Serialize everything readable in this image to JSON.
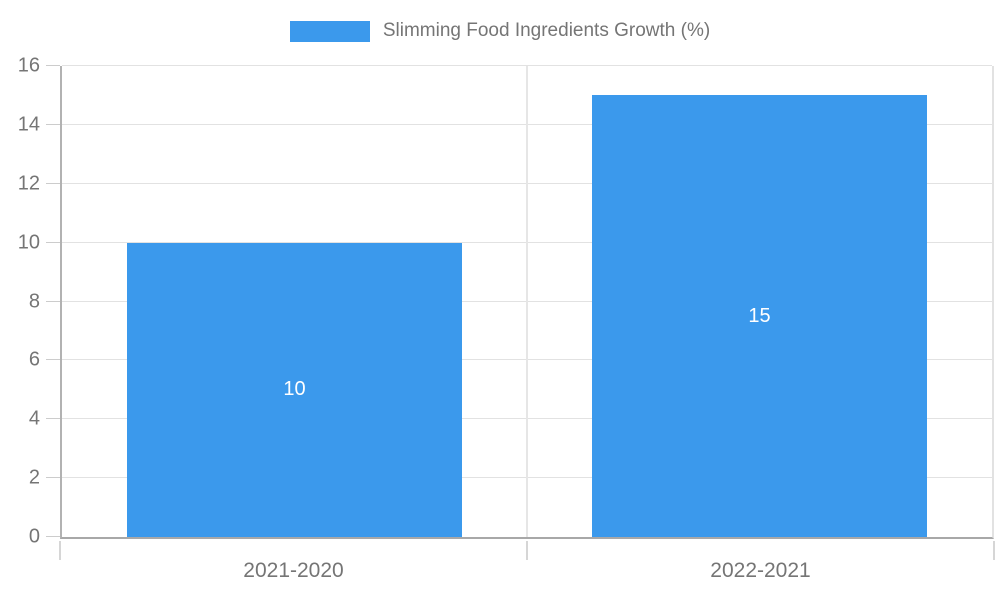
{
  "legend": {
    "label": "Slimming Food Ingredients Growth (%)"
  },
  "colors": {
    "bar": "#3b99ec",
    "axis_text": "#757575",
    "value_label_text": "#ffffff",
    "gridline": "#e2e2e2",
    "axis_line": "#a8a8a8"
  },
  "chart_data": {
    "type": "bar",
    "categories": [
      "2021-2020",
      "2022-2021"
    ],
    "values": [
      10,
      15
    ],
    "value_labels": [
      "10",
      "15"
    ],
    "title": "",
    "xlabel": "",
    "ylabel": "",
    "ylim": [
      0,
      16
    ],
    "ytick_step": 2,
    "grid": true,
    "legend_entries": [
      "Slimming Food Ingredients Growth (%)"
    ],
    "legend_position": "top-center",
    "value_label_position": "center-of-bar"
  }
}
